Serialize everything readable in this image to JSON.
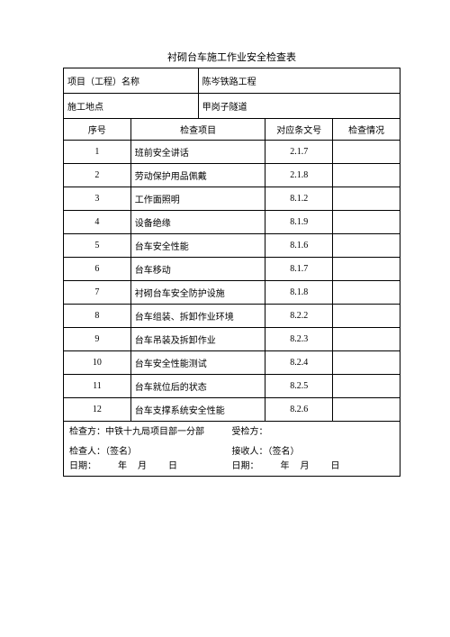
{
  "title": "衬砌台车施工作业安全检查表",
  "header": {
    "project_label": "项目（工程）名称",
    "project_value": "陈岑铁路工程",
    "site_label": "施工地点",
    "site_value": "甲岗子隧道"
  },
  "columns": {
    "seq": "序号",
    "item": "检查项目",
    "clause": "对应条文号",
    "status": "检查情况"
  },
  "rows": [
    {
      "seq": "1",
      "item": "班前安全讲话",
      "clause": "2.1.7",
      "status": ""
    },
    {
      "seq": "2",
      "item": "劳动保护用品佩戴",
      "clause": "2.1.8",
      "status": ""
    },
    {
      "seq": "3",
      "item": "工作面照明",
      "clause": "8.1.2",
      "status": ""
    },
    {
      "seq": "4",
      "item": "设备绝缘",
      "clause": "8.1.9",
      "status": ""
    },
    {
      "seq": "5",
      "item": "台车安全性能",
      "clause": "8.1.6",
      "status": ""
    },
    {
      "seq": "6",
      "item": "台车移动",
      "clause": "8.1.7",
      "status": ""
    },
    {
      "seq": "7",
      "item": "衬砌台车安全防护设施",
      "clause": "8.1.8",
      "status": ""
    },
    {
      "seq": "8",
      "item": "台车组装、拆卸作业环境",
      "clause": "8.2.2",
      "status": ""
    },
    {
      "seq": "9",
      "item": "台车吊装及拆卸作业",
      "clause": "8.2.3",
      "status": ""
    },
    {
      "seq": "10",
      "item": "台车安全性能测试",
      "clause": "8.2.4",
      "status": ""
    },
    {
      "seq": "11",
      "item": "台车就位后的状态",
      "clause": "8.2.5",
      "status": ""
    },
    {
      "seq": "12",
      "item": "台车支撑系统安全性能",
      "clause": "8.2.6",
      "status": ""
    }
  ],
  "footer": {
    "inspector_side": "检查方：中铁十九局项目部一分部",
    "inspected_side": "受检方：",
    "inspector_sign": "检查人：（签名）",
    "receiver_sign": "接收人：（签名）",
    "date_left": "日期：",
    "date_right": "日期：",
    "y": "年",
    "m": "月",
    "d": "日"
  }
}
